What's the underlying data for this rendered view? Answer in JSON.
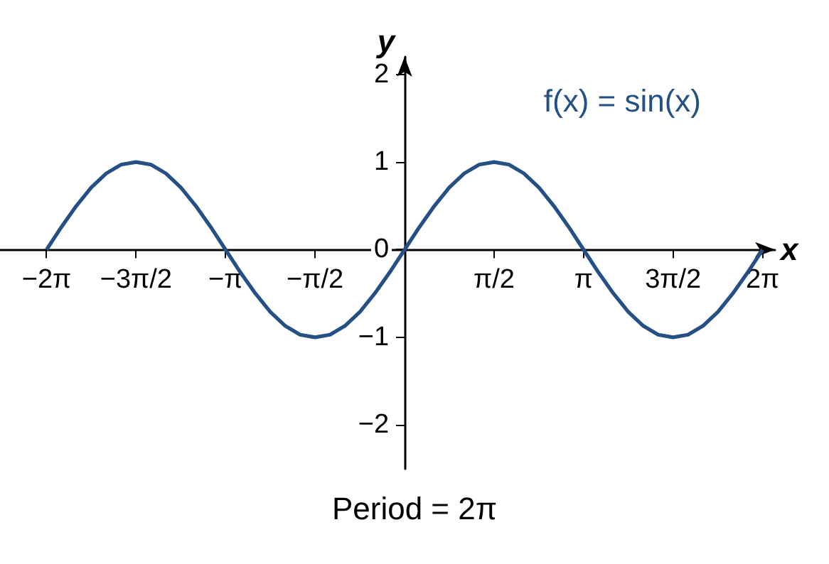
{
  "chart_data": {
    "type": "line",
    "xlabel": "x",
    "ylabel": "y",
    "x": [
      -6.283,
      -6.021,
      -5.76,
      -5.498,
      -5.236,
      -4.974,
      -4.712,
      -4.451,
      -4.189,
      -3.927,
      -3.665,
      -3.403,
      -3.142,
      -2.88,
      -2.618,
      -2.356,
      -2.094,
      -1.833,
      -1.571,
      -1.309,
      -1.047,
      -0.785,
      -0.524,
      -0.262,
      0,
      0.262,
      0.524,
      0.785,
      1.047,
      1.309,
      1.571,
      1.833,
      2.094,
      2.356,
      2.618,
      2.88,
      3.142,
      3.403,
      3.665,
      3.927,
      4.189,
      4.451,
      4.712,
      4.974,
      5.236,
      5.498,
      5.76,
      6.021,
      6.283
    ],
    "series": [
      {
        "name": "f(x) = sin(x)",
        "color": "#245086",
        "values": [
          0,
          0.26,
          0.5,
          0.71,
          0.87,
          0.97,
          1,
          0.97,
          0.87,
          0.71,
          0.5,
          0.26,
          0,
          -0.26,
          -0.5,
          -0.71,
          -0.87,
          -0.97,
          -1,
          -0.97,
          -0.87,
          -0.71,
          -0.5,
          -0.26,
          0,
          0.26,
          0.5,
          0.71,
          0.87,
          0.97,
          1,
          0.97,
          0.87,
          0.71,
          0.5,
          0.26,
          0,
          -0.26,
          -0.5,
          -0.71,
          -0.87,
          -0.97,
          -1,
          -0.97,
          -0.87,
          -0.71,
          -0.5,
          -0.26,
          0
        ]
      }
    ],
    "xlim": [
      -7.1,
      6.5
    ],
    "ylim": [
      -2.5,
      2.2
    ],
    "xticks": [
      {
        "value": -6.283,
        "label": "−2π"
      },
      {
        "value": -4.712,
        "label": "−3π/2"
      },
      {
        "value": -3.142,
        "label": "−π"
      },
      {
        "value": -1.571,
        "label": "−π/2"
      },
      {
        "value": 1.571,
        "label": "π/2"
      },
      {
        "value": 3.142,
        "label": "π"
      },
      {
        "value": 4.712,
        "label": "3π/2"
      },
      {
        "value": 6.283,
        "label": "2π"
      }
    ],
    "yticks": [
      {
        "value": -2,
        "label": "−2"
      },
      {
        "value": -1,
        "label": "−1"
      },
      0,
      1,
      2
    ],
    "annotations": [
      "Period = 2π"
    ],
    "legend": "top right",
    "grid": false,
    "marker": "none",
    "line_style": "solid"
  }
}
